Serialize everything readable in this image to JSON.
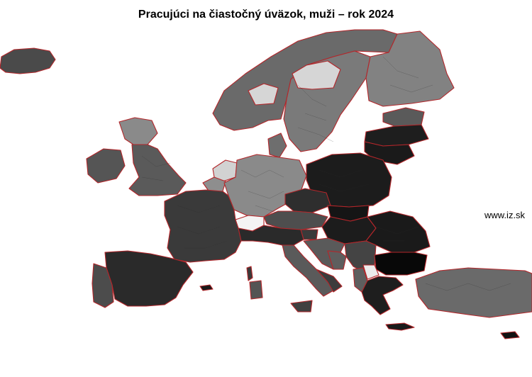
{
  "title": "Pracujúci na čiastočný úväzok, muži – rok 2024",
  "watermark": "www.iz.sk",
  "colors": {
    "border": "#b3262a",
    "very_dark": "#141414",
    "dark": "#2c2c2c",
    "medium_dark": "#444444",
    "medium": "#5e5e5e",
    "medium_light": "#7a7a7a",
    "light": "#a8a8a8",
    "very_light": "#d8d8d8"
  }
}
